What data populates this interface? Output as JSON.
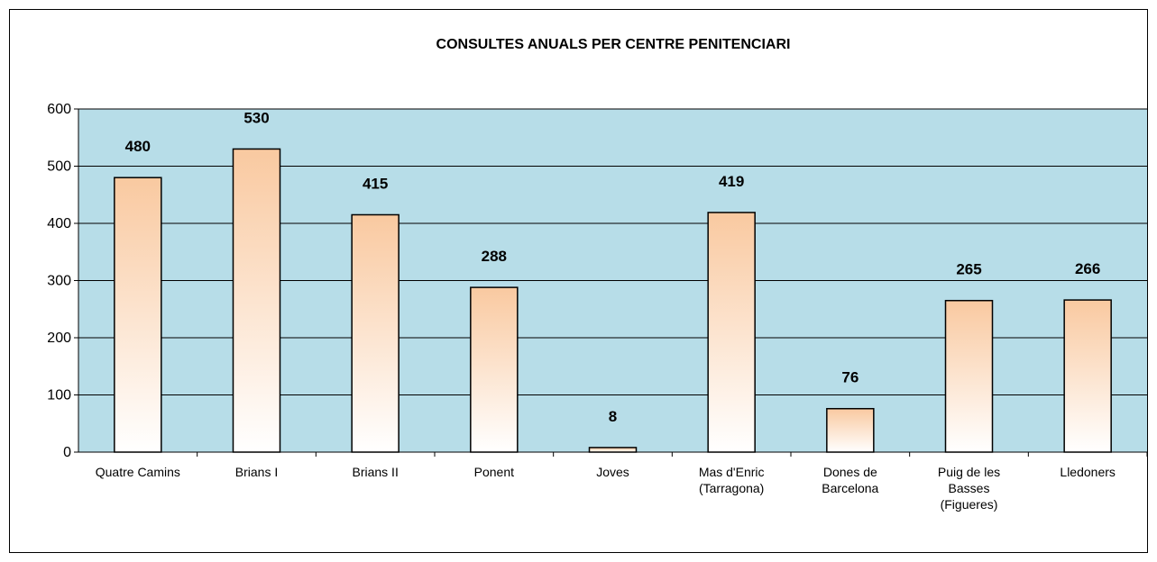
{
  "chart_data": {
    "type": "bar",
    "title": "CONSULTES ANUALS PER CENTRE PENITENCIARI",
    "categories": [
      "Quatre Camins",
      "Brians I",
      "Brians II",
      "Ponent",
      "Joves",
      "Mas d'Enric\n(Tarragona)",
      "Dones de\nBarcelona",
      "Puig de les\nBasses\n(Figueres)",
      "Lledoners"
    ],
    "values": [
      480,
      530,
      415,
      288,
      8,
      419,
      76,
      265,
      266
    ],
    "color": "#f9c9a0",
    "background": "#b7dde8",
    "ylim": [
      0,
      600
    ],
    "yticks": [
      0,
      100,
      200,
      300,
      400,
      500,
      600
    ],
    "grid": true
  }
}
